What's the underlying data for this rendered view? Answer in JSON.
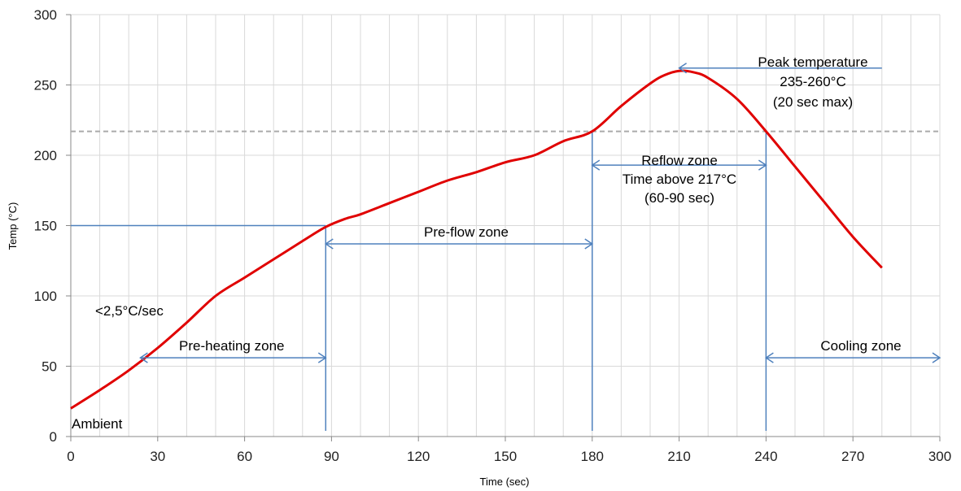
{
  "chart_data": {
    "type": "line",
    "xlabel": "Time (sec)",
    "ylabel": "Temp (°C)",
    "xlim": [
      0,
      300
    ],
    "ylim": [
      0,
      300
    ],
    "xticks": [
      0,
      30,
      60,
      90,
      120,
      150,
      180,
      210,
      240,
      270,
      300
    ],
    "yticks": [
      0,
      50,
      100,
      150,
      200,
      250,
      300
    ],
    "grid": true,
    "series": [
      {
        "color": "#e00000",
        "x": [
          0,
          10,
          20,
          30,
          40,
          50,
          60,
          70,
          80,
          88,
          95,
          100,
          110,
          120,
          130,
          140,
          150,
          160,
          170,
          180,
          190,
          200,
          205,
          210,
          215,
          220,
          230,
          240,
          250,
          260,
          270,
          280
        ],
        "y": [
          20,
          33,
          47,
          63,
          81,
          100,
          113,
          126,
          139,
          149,
          155,
          158,
          166,
          174,
          182,
          188,
          195,
          200,
          210,
          217,
          235,
          251,
          257,
          260,
          259,
          255,
          240,
          217,
          192,
          167,
          142,
          120
        ]
      }
    ],
    "reference_lines": {
      "temp_threshold": 217,
      "temp_threshold_color": "#aaaaaa",
      "guide_color": "#4f81bd",
      "preheat_level": 150
    },
    "vertical_markers": [
      88,
      180,
      240
    ],
    "arrows": [
      {
        "name": "pre-heating",
        "x0": 24,
        "x1": 88,
        "y": 56
      },
      {
        "name": "pre-flow",
        "x0": 88,
        "x1": 180,
        "y": 137
      },
      {
        "name": "reflow",
        "x0": 180,
        "x1": 240,
        "y": 193
      },
      {
        "name": "cooling",
        "x0": 240,
        "x1": 300,
        "y": 56
      },
      {
        "name": "peak",
        "x0": 210,
        "x1": 280,
        "y": 262
      }
    ],
    "annotations": {
      "ambient": "Ambient",
      "ramp_rate": "<2,5°C/sec",
      "preheating_zone": "Pre-heating zone",
      "preflow_zone": "Pre-flow zone",
      "reflow_line1": "Reflow zone",
      "reflow_line2": "Time above 217°C",
      "reflow_line3": "(60-90 sec)",
      "cooling_zone": "Cooling zone",
      "peak_line1": "Peak temperature",
      "peak_line2": "235-260°C",
      "peak_line3": "(20 sec max)"
    }
  }
}
